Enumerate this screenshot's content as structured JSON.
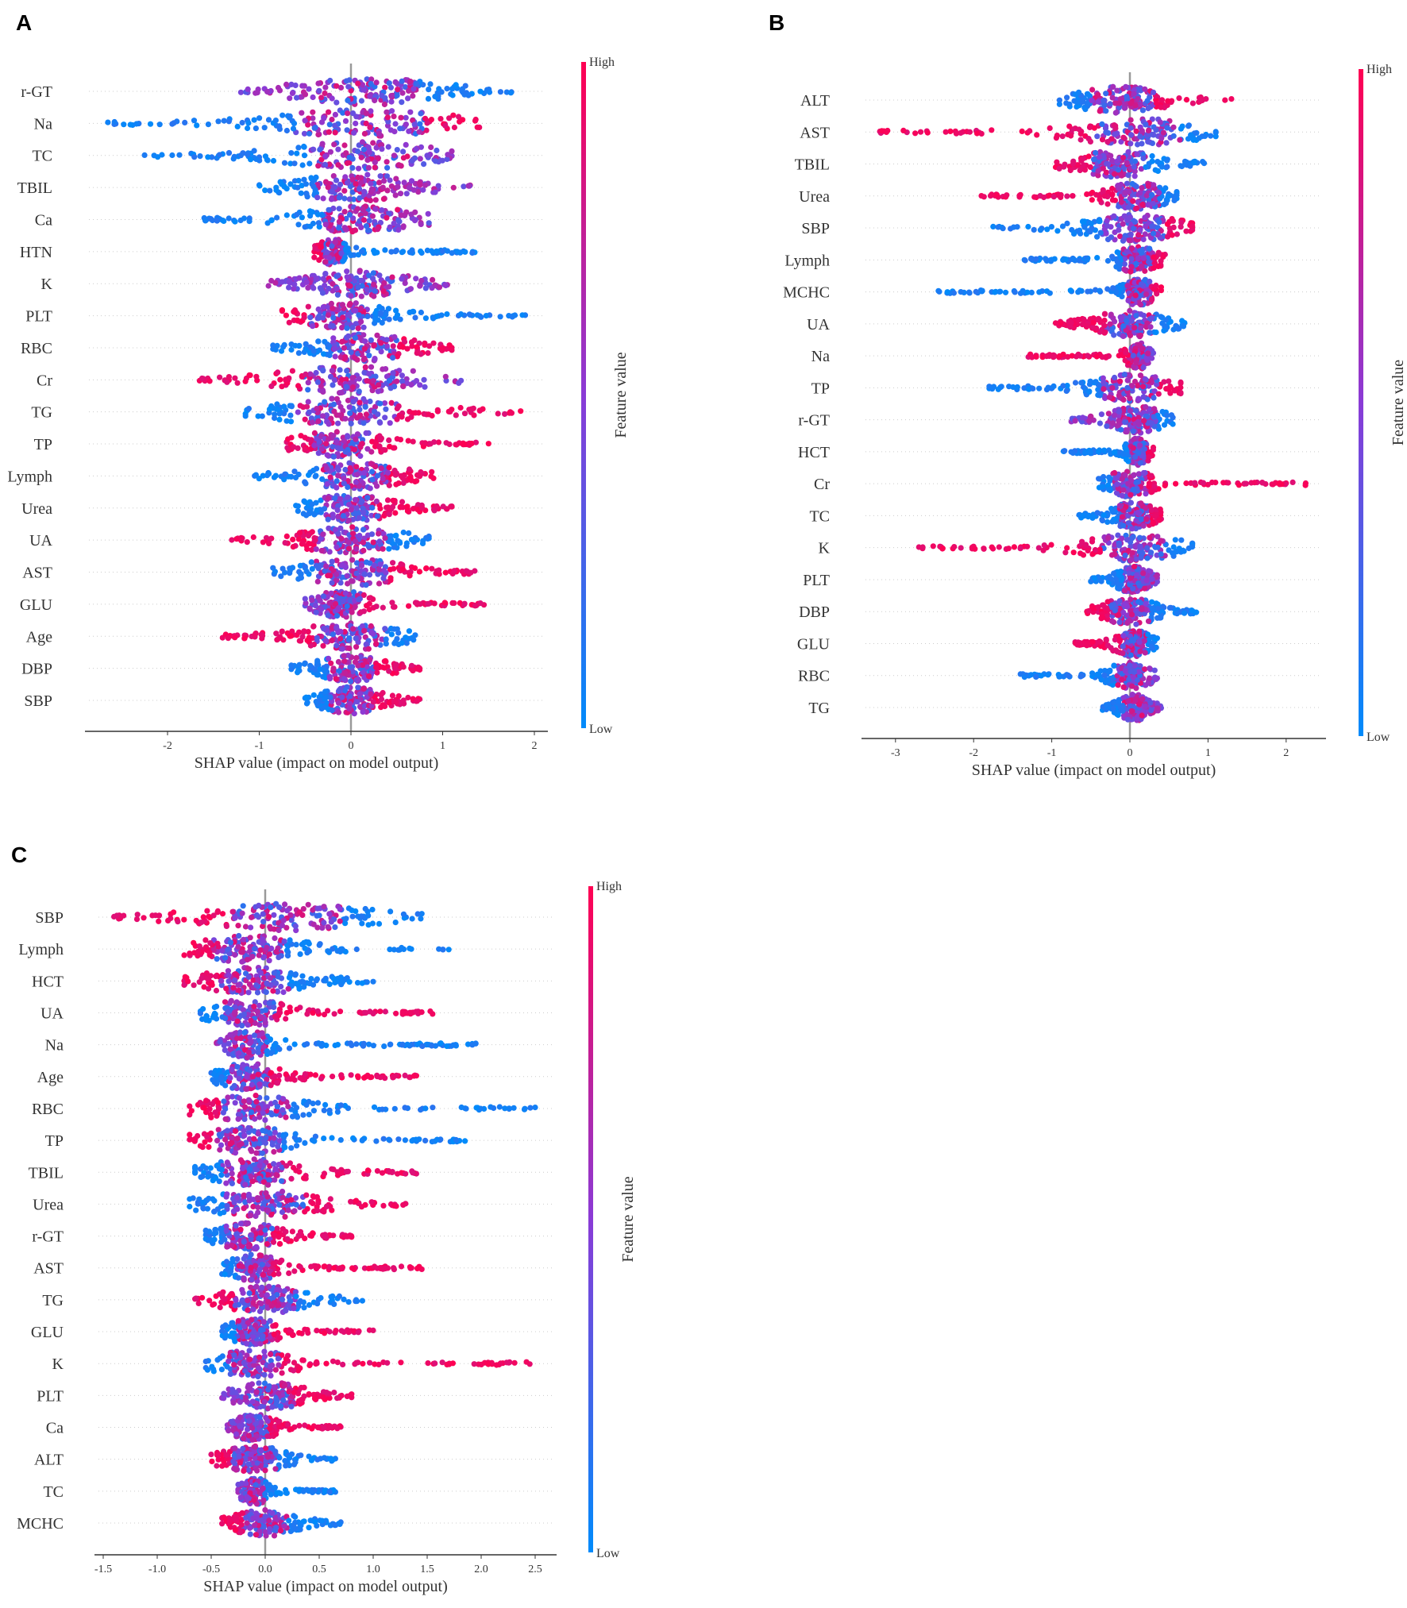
{
  "chart_data": [
    {
      "panel": "A",
      "type": "scatter",
      "subtype": "shap-beeswarm",
      "xlabel": "SHAP value (impact on model output)",
      "xlim": [
        -2.9,
        2.1
      ],
      "xticks": [
        -2,
        -1,
        0,
        1,
        2
      ],
      "colorbar": {
        "title": "Feature value",
        "high": "High",
        "low": "Low"
      },
      "features": [
        {
          "name": "r-GT",
          "min": -1.2,
          "max": 1.75,
          "peak": 0.2,
          "low_side": "mixed",
          "high_side": "blue"
        },
        {
          "name": "Na",
          "min": -2.65,
          "max": 1.4,
          "peak": 0.1,
          "low_side": "blue",
          "high_side": "red"
        },
        {
          "name": "TC",
          "min": -2.25,
          "max": 1.1,
          "peak": 0.1,
          "low_side": "blue",
          "high_side": "mixed"
        },
        {
          "name": "TBIL",
          "min": -1.0,
          "max": 1.3,
          "peak": 0.05,
          "low_side": "blue",
          "high_side": "mixed"
        },
        {
          "name": "Ca",
          "min": -1.6,
          "max": 0.85,
          "peak": 0.1,
          "low_side": "blue",
          "high_side": "mixed"
        },
        {
          "name": "HTN",
          "min": -0.4,
          "max": 1.35,
          "peak": -0.2,
          "low_side": "red",
          "high_side": "blue"
        },
        {
          "name": "K",
          "min": -0.9,
          "max": 1.05,
          "peak": 0.1,
          "low_side": "mixed",
          "high_side": "mixed"
        },
        {
          "name": "PLT",
          "min": -0.75,
          "max": 1.9,
          "peak": -0.1,
          "low_side": "red",
          "high_side": "blue"
        },
        {
          "name": "RBC",
          "min": -0.85,
          "max": 1.1,
          "peak": 0.15,
          "low_side": "blue",
          "high_side": "red"
        },
        {
          "name": "Cr",
          "min": -1.65,
          "max": 1.2,
          "peak": 0.0,
          "low_side": "red",
          "high_side": "mixed"
        },
        {
          "name": "TG",
          "min": -1.15,
          "max": 1.85,
          "peak": -0.05,
          "low_side": "blue",
          "high_side": "red"
        },
        {
          "name": "TP",
          "min": -0.7,
          "max": 1.5,
          "peak": -0.1,
          "low_side": "red",
          "high_side": "red"
        },
        {
          "name": "Lymph",
          "min": -1.05,
          "max": 0.9,
          "peak": 0.05,
          "low_side": "blue",
          "high_side": "red"
        },
        {
          "name": "Urea",
          "min": -0.6,
          "max": 1.1,
          "peak": 0.0,
          "low_side": "blue",
          "high_side": "red"
        },
        {
          "name": "UA",
          "min": -1.3,
          "max": 0.85,
          "peak": 0.0,
          "low_side": "red",
          "high_side": "blue"
        },
        {
          "name": "AST",
          "min": -0.85,
          "max": 1.35,
          "peak": 0.0,
          "low_side": "blue",
          "high_side": "red"
        },
        {
          "name": "GLU",
          "min": -0.5,
          "max": 1.45,
          "peak": -0.1,
          "low_side": "mixed",
          "high_side": "red"
        },
        {
          "name": "Age",
          "min": -1.4,
          "max": 0.7,
          "peak": 0.0,
          "low_side": "red",
          "high_side": "blue"
        },
        {
          "name": "DBP",
          "min": -0.65,
          "max": 0.75,
          "peak": 0.0,
          "low_side": "blue",
          "high_side": "red"
        },
        {
          "name": "SBP",
          "min": -0.5,
          "max": 0.75,
          "peak": 0.0,
          "low_side": "blue",
          "high_side": "red"
        }
      ]
    },
    {
      "panel": "B",
      "type": "scatter",
      "subtype": "shap-beeswarm",
      "xlabel": "SHAP value (impact on model output)",
      "xlim": [
        -3.5,
        2.5
      ],
      "xticks": [
        -3,
        -2,
        -1,
        0,
        1,
        2
      ],
      "colorbar": {
        "title": "Feature value",
        "high": "High",
        "low": "Low"
      },
      "features": [
        {
          "name": "ALT",
          "min": -0.9,
          "max": 1.3,
          "peak": -0.1,
          "low_side": "blue",
          "high_side": "red"
        },
        {
          "name": "AST",
          "min": -3.2,
          "max": 1.1,
          "peak": 0.1,
          "low_side": "red",
          "high_side": "blue"
        },
        {
          "name": "TBIL",
          "min": -0.95,
          "max": 0.95,
          "peak": -0.15,
          "low_side": "red",
          "high_side": "blue"
        },
        {
          "name": "Urea",
          "min": -1.9,
          "max": 0.6,
          "peak": 0.1,
          "low_side": "red",
          "high_side": "blue"
        },
        {
          "name": "SBP",
          "min": -1.75,
          "max": 0.8,
          "peak": 0.05,
          "low_side": "blue",
          "high_side": "red"
        },
        {
          "name": "Lymph",
          "min": -1.35,
          "max": 0.45,
          "peak": 0.1,
          "low_side": "blue",
          "high_side": "red"
        },
        {
          "name": "MCHC",
          "min": -2.45,
          "max": 0.4,
          "peak": 0.1,
          "low_side": "blue",
          "high_side": "red"
        },
        {
          "name": "UA",
          "min": -0.95,
          "max": 0.7,
          "peak": 0.0,
          "low_side": "red",
          "high_side": "blue"
        },
        {
          "name": "Na",
          "min": -1.3,
          "max": 0.3,
          "peak": 0.1,
          "low_side": "red",
          "high_side": "mixed"
        },
        {
          "name": "TP",
          "min": -1.8,
          "max": 0.65,
          "peak": 0.0,
          "low_side": "blue",
          "high_side": "red"
        },
        {
          "name": "r-GT",
          "min": -0.75,
          "max": 0.55,
          "peak": 0.1,
          "low_side": "mixed",
          "high_side": "blue"
        },
        {
          "name": "HCT",
          "min": -0.85,
          "max": 0.3,
          "peak": 0.1,
          "low_side": "blue",
          "high_side": "red"
        },
        {
          "name": "Cr",
          "min": -0.4,
          "max": 2.25,
          "peak": 0.0,
          "low_side": "blue",
          "high_side": "red"
        },
        {
          "name": "TC",
          "min": -0.65,
          "max": 0.4,
          "peak": 0.05,
          "low_side": "blue",
          "high_side": "red"
        },
        {
          "name": "K",
          "min": -2.7,
          "max": 0.8,
          "peak": 0.05,
          "low_side": "red",
          "high_side": "blue"
        },
        {
          "name": "PLT",
          "min": -0.5,
          "max": 0.35,
          "peak": 0.05,
          "low_side": "blue",
          "high_side": "mixed"
        },
        {
          "name": "DBP",
          "min": -0.55,
          "max": 0.85,
          "peak": 0.0,
          "low_side": "red",
          "high_side": "blue"
        },
        {
          "name": "GLU",
          "min": -0.7,
          "max": 0.35,
          "peak": 0.05,
          "low_side": "red",
          "high_side": "blue"
        },
        {
          "name": "RBC",
          "min": -1.4,
          "max": 0.35,
          "peak": 0.0,
          "low_side": "blue",
          "high_side": "mixed"
        },
        {
          "name": "TG",
          "min": -0.35,
          "max": 0.4,
          "peak": 0.05,
          "low_side": "blue",
          "high_side": "mixed"
        }
      ]
    },
    {
      "panel": "C",
      "type": "scatter",
      "subtype": "shap-beeswarm",
      "xlabel": "SHAP value (impact on model output)",
      "xlim": [
        -1.6,
        2.7
      ],
      "xticks": [
        -1.5,
        -1.0,
        -0.5,
        0.0,
        0.5,
        1.0,
        1.5,
        2.0,
        2.5
      ],
      "xtick_labels": [
        "-1.5",
        "-1.0",
        "-0.5",
        "0.0",
        "0.5",
        "1.0",
        "1.5",
        "2.0",
        "2.5"
      ],
      "colorbar": {
        "title": "Feature value",
        "high": "High",
        "low": "Low"
      },
      "features": [
        {
          "name": "SBP",
          "min": -1.4,
          "max": 1.45,
          "peak": 0.2,
          "low_side": "red",
          "high_side": "blue"
        },
        {
          "name": "Lymph",
          "min": -0.75,
          "max": 1.7,
          "peak": -0.15,
          "low_side": "red",
          "high_side": "blue"
        },
        {
          "name": "HCT",
          "min": -0.75,
          "max": 1.0,
          "peak": -0.1,
          "low_side": "red",
          "high_side": "blue"
        },
        {
          "name": "UA",
          "min": -0.6,
          "max": 1.55,
          "peak": -0.15,
          "low_side": "blue",
          "high_side": "red"
        },
        {
          "name": "Na",
          "min": -0.45,
          "max": 1.95,
          "peak": -0.15,
          "low_side": "mixed",
          "high_side": "blue"
        },
        {
          "name": "Age",
          "min": -0.5,
          "max": 1.4,
          "peak": -0.15,
          "low_side": "blue",
          "high_side": "red"
        },
        {
          "name": "RBC",
          "min": -0.7,
          "max": 2.5,
          "peak": -0.1,
          "low_side": "red",
          "high_side": "blue"
        },
        {
          "name": "TP",
          "min": -0.7,
          "max": 1.85,
          "peak": -0.15,
          "low_side": "red",
          "high_side": "blue"
        },
        {
          "name": "TBIL",
          "min": -0.65,
          "max": 1.4,
          "peak": -0.1,
          "low_side": "blue",
          "high_side": "red"
        },
        {
          "name": "Urea",
          "min": -0.7,
          "max": 1.3,
          "peak": 0.0,
          "low_side": "blue",
          "high_side": "red"
        },
        {
          "name": "r-GT",
          "min": -0.55,
          "max": 0.8,
          "peak": -0.15,
          "low_side": "blue",
          "high_side": "red"
        },
        {
          "name": "AST",
          "min": -0.4,
          "max": 1.45,
          "peak": -0.1,
          "low_side": "blue",
          "high_side": "red"
        },
        {
          "name": "TG",
          "min": -0.65,
          "max": 0.9,
          "peak": 0.0,
          "low_side": "red",
          "high_side": "blue"
        },
        {
          "name": "GLU",
          "min": -0.4,
          "max": 1.0,
          "peak": -0.1,
          "low_side": "blue",
          "high_side": "red"
        },
        {
          "name": "K",
          "min": -0.55,
          "max": 2.45,
          "peak": -0.1,
          "low_side": "blue",
          "high_side": "red"
        },
        {
          "name": "PLT",
          "min": -0.4,
          "max": 0.8,
          "peak": 0.05,
          "low_side": "mixed",
          "high_side": "red"
        },
        {
          "name": "Ca",
          "min": -0.35,
          "max": 0.7,
          "peak": -0.1,
          "low_side": "mixed",
          "high_side": "red"
        },
        {
          "name": "ALT",
          "min": -0.5,
          "max": 0.65,
          "peak": -0.1,
          "low_side": "red",
          "high_side": "blue"
        },
        {
          "name": "TC",
          "min": -0.25,
          "max": 0.65,
          "peak": -0.1,
          "low_side": "mixed",
          "high_side": "blue"
        },
        {
          "name": "MCHC",
          "min": -0.4,
          "max": 0.7,
          "peak": 0.0,
          "low_side": "red",
          "high_side": "blue"
        }
      ]
    }
  ],
  "colors": {
    "high": "#ff0052",
    "low": "#008bfb",
    "mid": "#8a3bd6",
    "zero_line": "#999999"
  }
}
